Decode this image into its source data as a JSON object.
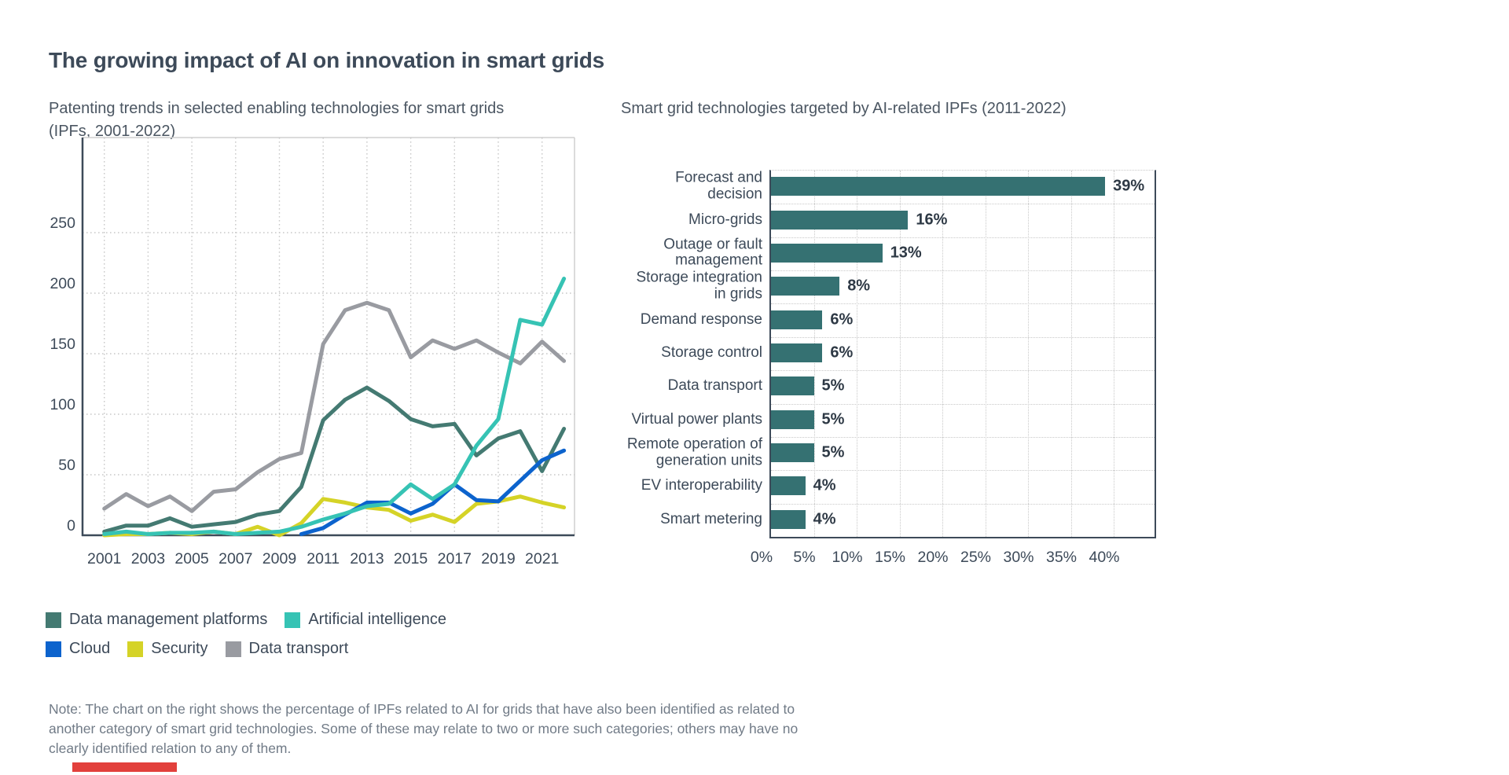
{
  "header": {
    "title": "The growing impact of AI on innovation in smart grids"
  },
  "line_chart": {
    "subtitle_line1": "Patenting trends in selected enabling technologies for smart grids",
    "subtitle_line2": "(IPFs, 2001-2022)"
  },
  "bar_chart": {
    "subtitle": "Smart grid technologies targeted by AI-related IPFs (2011-2022)"
  },
  "note": {
    "line1": "Note: The chart on the right shows the percentage of IPFs related to AI for grids that have also been identified as related to",
    "line2": "another category of smart grid technologies. Some of these may relate to two or more such categories; others may have no",
    "line3": "clearly identified relation to any of them."
  },
  "colors": {
    "heading_text": "#3d4a59",
    "subtitle_text": "#4b5662",
    "note_text": "#717b87",
    "axis_dark": "#3d4a59",
    "grid_dotted": "#c9c9c9",
    "frame_light": "#cfcfcf",
    "red_accent": "#e2403c",
    "bar_fill": "#357172"
  },
  "chart_data": [
    {
      "type": "line",
      "title": "Patenting trends in selected enabling technologies for smart grids (IPFs, 2001-2022)",
      "x": [
        2001,
        2002,
        2003,
        2004,
        2005,
        2006,
        2007,
        2008,
        2009,
        2010,
        2011,
        2012,
        2013,
        2014,
        2015,
        2016,
        2017,
        2018,
        2019,
        2020,
        2021,
        2022
      ],
      "xticks": [
        2001,
        2003,
        2005,
        2007,
        2009,
        2011,
        2013,
        2015,
        2017,
        2019,
        2021
      ],
      "yticks": [
        0,
        50,
        100,
        150,
        200,
        250
      ],
      "ylim": [
        0,
        305
      ],
      "grid": "dotted",
      "legend_position": "bottom",
      "series": [
        {
          "name": "Data management platforms",
          "color": "#447a72",
          "values": [
            3,
            8,
            8,
            14,
            7,
            9,
            11,
            17,
            20,
            40,
            95,
            112,
            122,
            111,
            96,
            90,
            92,
            66,
            80,
            86,
            53,
            88
          ]
        },
        {
          "name": "Artificial intelligence",
          "color": "#36c3b4",
          "values": [
            1,
            3,
            1,
            2,
            2,
            3,
            1,
            2,
            3,
            7,
            13,
            18,
            24,
            26,
            42,
            30,
            42,
            74,
            96,
            178,
            174,
            212
          ]
        },
        {
          "name": "Cloud",
          "color": "#0c63cd",
          "values": [
            null,
            null,
            null,
            null,
            null,
            null,
            null,
            null,
            null,
            1,
            6,
            17,
            27,
            27,
            18,
            26,
            42,
            29,
            28,
            45,
            62,
            70
          ]
        },
        {
          "name": "Security",
          "color": "#d5d327",
          "values": [
            0,
            1,
            1,
            2,
            1,
            3,
            1,
            7,
            0,
            10,
            30,
            27,
            23,
            21,
            12,
            17,
            11,
            26,
            28,
            32,
            27,
            23
          ]
        },
        {
          "name": "Data transport",
          "color": "#999ba1",
          "values": [
            22,
            34,
            24,
            32,
            20,
            36,
            38,
            52,
            63,
            68,
            158,
            186,
            192,
            186,
            147,
            161,
            154,
            161,
            151,
            142,
            160,
            144
          ]
        }
      ],
      "legend_rows": [
        [
          "Data management platforms",
          "Artificial intelligence"
        ],
        [
          "Cloud",
          "Security",
          "Data transport"
        ]
      ]
    },
    {
      "type": "bar",
      "orientation": "horizontal",
      "title": "Smart grid technologies targeted by AI-related IPFs (2011-2022)",
      "categories": [
        "Forecast and decision",
        "Micro-grids",
        "Outage or fault management",
        "Storage integration in grids",
        "Demand response",
        "Storage control",
        "Data transport",
        "Virtual power plants",
        "Remote operation of generation units",
        "EV interoperability",
        "Smart metering"
      ],
      "category_lines": [
        [
          "Forecast and",
          "decision"
        ],
        [
          "Micro-grids"
        ],
        [
          "Outage or fault",
          "management"
        ],
        [
          "Storage integration",
          "in grids"
        ],
        [
          "Demand response"
        ],
        [
          "Storage control"
        ],
        [
          "Data transport"
        ],
        [
          "Virtual power plants"
        ],
        [
          "Remote operation of",
          "generation units"
        ],
        [
          "EV interoperability"
        ],
        [
          "Smart metering"
        ]
      ],
      "values": [
        39,
        16,
        13,
        8,
        6,
        6,
        5,
        5,
        5,
        4,
        4
      ],
      "value_labels": [
        "39%",
        "16%",
        "13%",
        "8%",
        "6%",
        "6%",
        "5%",
        "5%",
        "5%",
        "4%",
        "4%"
      ],
      "xticks": [
        "0%",
        "5%",
        "10%",
        "15%",
        "20%",
        "25%",
        "30%",
        "35%",
        "40%"
      ],
      "xtick_values": [
        0,
        5,
        10,
        15,
        20,
        25,
        30,
        35,
        40
      ],
      "xlim": [
        0,
        44.7
      ],
      "grid": "dotted"
    }
  ]
}
